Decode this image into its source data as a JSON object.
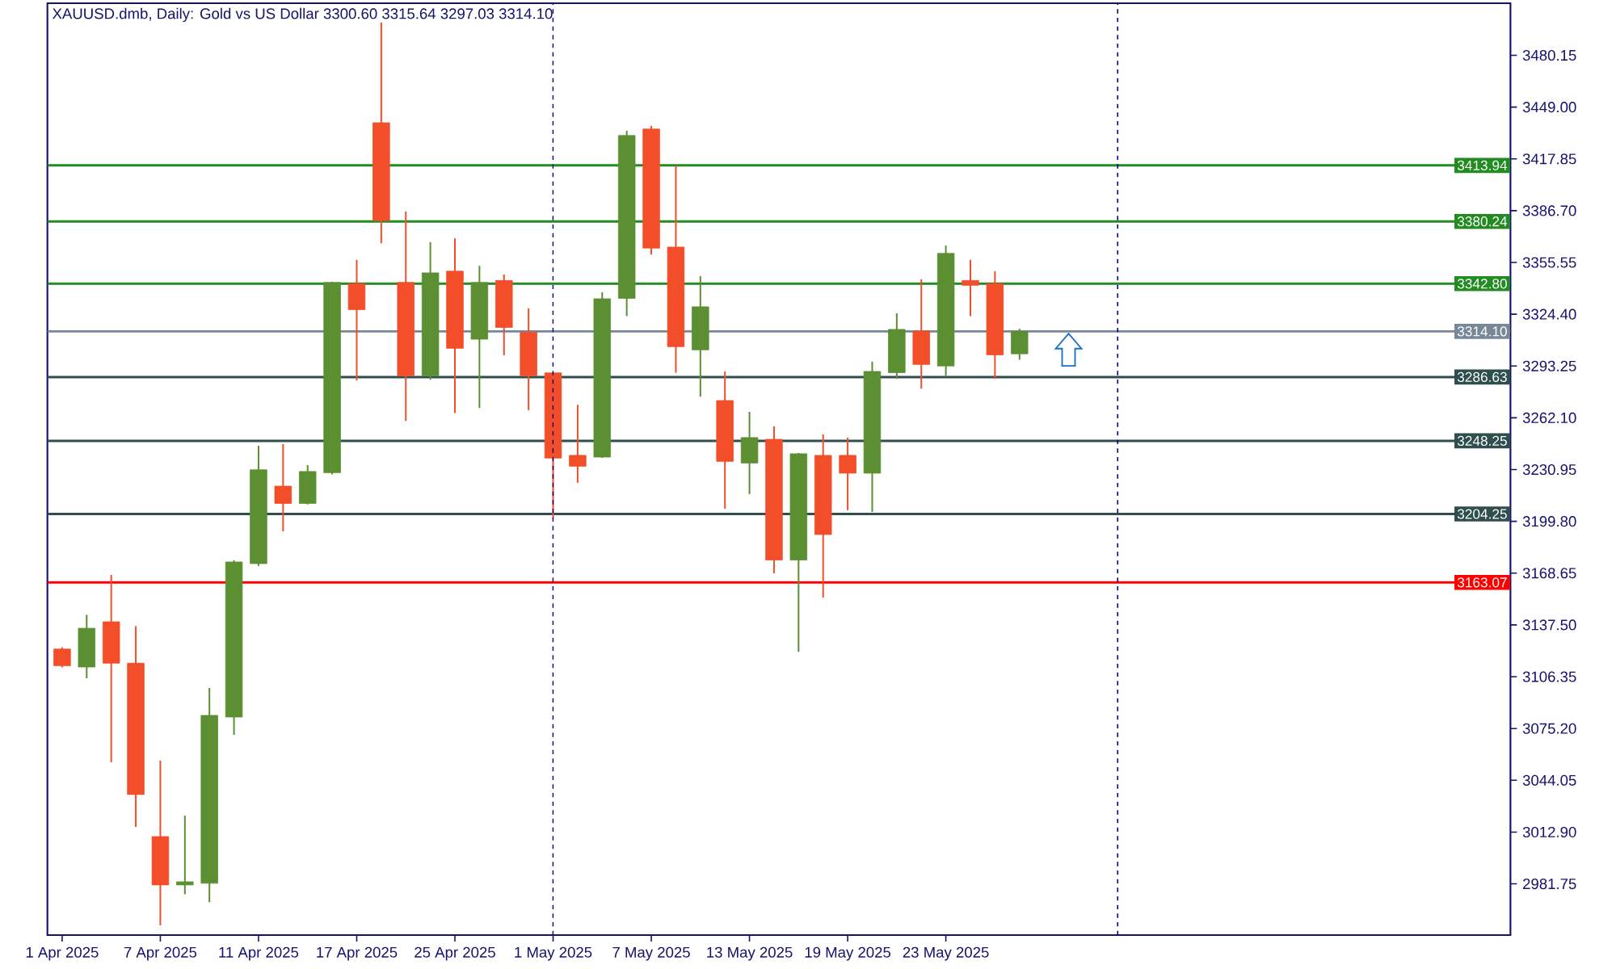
{
  "chart_data": {
    "type": "candlestick",
    "title": "XAUUSD.dmb, Daily:  Gold vs US Dollar  3300.60 3315.64 3297.03 3314.10",
    "categories": [
      "1 Apr 2025",
      null,
      null,
      null,
      "7 Apr 2025",
      null,
      null,
      null,
      "11 Apr 2025",
      null,
      null,
      null,
      "17 Apr 2025",
      null,
      null,
      null,
      "25 Apr 2025",
      null,
      null,
      null,
      "1 May 2025",
      null,
      null,
      null,
      "7 May 2025",
      null,
      null,
      null,
      "13 May 2025",
      null,
      null,
      null,
      "19 May 2025",
      null,
      null,
      null,
      "23 May 2025",
      null,
      null,
      null,
      null,
      null,
      null,
      null,
      null,
      null,
      null,
      null,
      null,
      null,
      null,
      null,
      null,
      null,
      null,
      null,
      null,
      null,
      null,
      null
    ],
    "ohlc": [
      [
        3123,
        3124,
        3112,
        3113
      ],
      [
        3112.2,
        3143.6,
        3105.4,
        3135.5
      ],
      [
        3139.4,
        3167.6,
        3054.9,
        3114.5
      ],
      [
        3114.5,
        3136.8,
        3016.0,
        3035.5
      ],
      [
        3010.2,
        3055.9,
        2956.8,
        2981.1
      ],
      [
        2981.1,
        3022.8,
        2975.5,
        2983.0
      ],
      [
        2982.1,
        3099.6,
        2970.7,
        3083.1
      ],
      [
        3082.1,
        3176.4,
        3071.4,
        3175.4
      ],
      [
        3174.4,
        3245.3,
        3173.0,
        3230.8
      ],
      [
        3221.0,
        3246.3,
        3193.8,
        3210.6
      ],
      [
        3210.6,
        3233.7,
        3210.0,
        3229.8
      ],
      [
        3229.1,
        3344.0,
        3228.0,
        3343.5
      ],
      [
        3342.8,
        3357.1,
        3284.5,
        3327.2
      ],
      [
        3439.6,
        3499.9,
        3367.1,
        3380.7
      ],
      [
        3343.5,
        3386.2,
        3260.2,
        3287.4
      ],
      [
        3287.4,
        3367.8,
        3285.0,
        3349.3
      ],
      [
        3350.3,
        3370.0,
        3265.0,
        3303.9
      ],
      [
        3309.4,
        3353.5,
        3268.0,
        3343.5
      ],
      [
        3344.7,
        3348.3,
        3299.7,
        3316.5
      ],
      [
        3313.6,
        3327.9,
        3266.7,
        3287.4
      ],
      [
        3289.1,
        3289.5,
        3201.6,
        3237.9
      ],
      [
        3239.5,
        3269.9,
        3223.0,
        3233.0
      ],
      [
        3238.5,
        3337.6,
        3238.0,
        3333.7
      ],
      [
        3334.0,
        3434.8,
        3323.3,
        3431.9
      ],
      [
        3435.8,
        3437.7,
        3360.3,
        3364.2
      ],
      [
        3364.8,
        3413.7,
        3289.3,
        3304.9
      ],
      [
        3303.0,
        3347.3,
        3274.8,
        3328.9
      ],
      [
        3272.5,
        3290.0,
        3207.4,
        3235.9
      ],
      [
        3234.9,
        3265.7,
        3216.2,
        3250.2
      ],
      [
        3249.2,
        3257.0,
        3168.6,
        3176.6
      ],
      [
        3176.6,
        3241.0,
        3121.3,
        3240.5
      ],
      [
        3239.5,
        3252.1,
        3154.0,
        3191.9
      ],
      [
        3239.5,
        3250.2,
        3206.5,
        3228.8
      ],
      [
        3228.8,
        3295.9,
        3205.5,
        3290.0
      ],
      [
        3289.3,
        3325.0,
        3285.5,
        3315.3
      ],
      [
        3314.3,
        3345.4,
        3279.6,
        3294.2
      ],
      [
        3293.3,
        3365.8,
        3287.4,
        3361.0
      ],
      [
        3344.7,
        3357.1,
        3323.3,
        3341.8
      ],
      [
        3342.8,
        3350.3,
        3285.5,
        3300.0
      ],
      [
        3300.6,
        3315.64,
        3297.03,
        3314.1
      ],
      null,
      null,
      null,
      null,
      null,
      null,
      null,
      null,
      null,
      null,
      null,
      null,
      null,
      null,
      null,
      null,
      null,
      null,
      null,
      null
    ],
    "colors": [
      "#f24e29",
      "#5b8f32",
      "#f24e29",
      "#f24e29",
      "#f24e29",
      "#5b8f32",
      "#5b8f32",
      "#5b8f32",
      "#5b8f32",
      "#f24e29",
      "#5b8f32",
      "#5b8f32",
      "#f24e29",
      "#f24e29",
      "#f24e29",
      "#5b8f32",
      "#f24e29",
      "#5b8f32",
      "#f24e29",
      "#f24e29",
      "#f24e29",
      "#f24e29",
      "#5b8f32",
      "#5b8f32",
      "#f24e29",
      "#f24e29",
      "#5b8f32",
      "#f24e29",
      "#5b8f32",
      "#f24e29",
      "#5b8f32",
      "#f24e29",
      "#f24e29",
      "#5b8f32",
      "#5b8f32",
      "#f24e29",
      "#5b8f32",
      "#f24e29",
      "#f24e29",
      "#5b8f32",
      null,
      null,
      null,
      null,
      null,
      null,
      null,
      null,
      null,
      null,
      null,
      null,
      null,
      null,
      null,
      null,
      null,
      null,
      null,
      null
    ],
    "ylim": [
      2950.95,
      3511.5
    ],
    "yticks": [
      {
        "value": 2981.75,
        "label": "2981.75"
      },
      {
        "value": 3012.9,
        "label": "3012.90"
      },
      {
        "value": 3044.05,
        "label": "3044.05"
      },
      {
        "value": 3075.2,
        "label": "3075.20"
      },
      {
        "value": 3106.35,
        "label": "3106.35"
      },
      {
        "value": 3137.5,
        "label": "3137.50"
      },
      {
        "value": 3168.65,
        "label": "3168.65"
      },
      {
        "value": 3199.8,
        "label": "3199.80"
      },
      {
        "value": 3230.95,
        "label": "3230.95"
      },
      {
        "value": 3262.1,
        "label": "3262.10"
      },
      {
        "value": 3293.25,
        "label": "3293.25"
      },
      {
        "value": 3324.4,
        "label": "3324.40"
      },
      {
        "value": 3355.55,
        "label": "3355.55"
      },
      {
        "value": 3386.7,
        "label": "3386.70"
      },
      {
        "value": 3417.85,
        "label": "3417.85"
      },
      {
        "value": 3449.0,
        "label": "3449.00"
      },
      {
        "value": 3480.15,
        "label": "3480.15"
      }
    ],
    "ref_lines": [
      {
        "axis": "y",
        "value": 3413.94,
        "label": "3413.94",
        "color": "#228b22"
      },
      {
        "axis": "y",
        "value": 3380.24,
        "label": "3380.24",
        "color": "#228b22"
      },
      {
        "axis": "y",
        "value": 3342.8,
        "label": "3342.80",
        "color": "#228b22"
      },
      {
        "axis": "y",
        "value": 3314.1,
        "label": "3314.10",
        "color": "#778899"
      },
      {
        "axis": "y",
        "value": 3286.63,
        "label": "3286.63",
        "color": "#2f4f4f"
      },
      {
        "axis": "y",
        "value": 3248.25,
        "label": "3248.25",
        "color": "#2f4f4f"
      },
      {
        "axis": "y",
        "value": 3204.25,
        "label": "3204.25",
        "color": "#2f4f4f"
      },
      {
        "axis": "y",
        "value": 3163.07,
        "label": "3163.07",
        "color": "#ff0000"
      }
    ]
  }
}
